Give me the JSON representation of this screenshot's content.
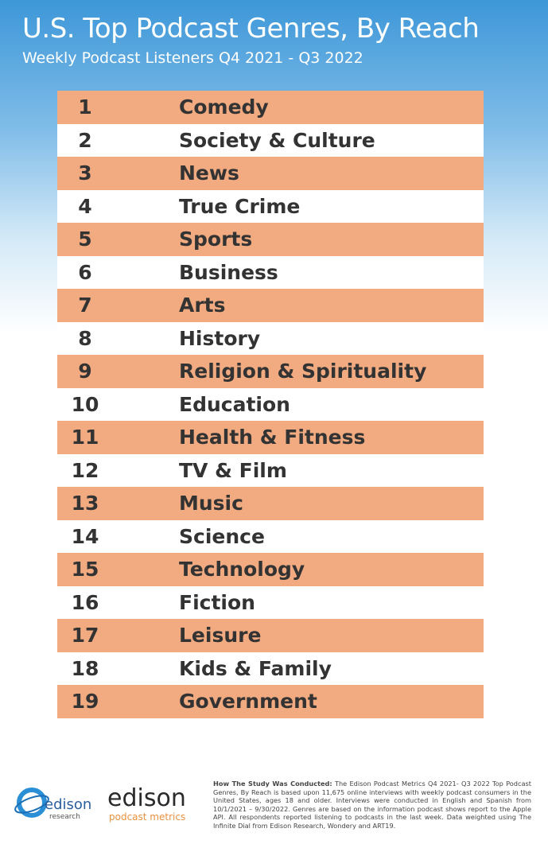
{
  "header": {
    "title": "U.S. Top Podcast Genres, By Reach",
    "subtitle": "Weekly Podcast Listeners Q4 2021 - Q3 2022"
  },
  "table": {
    "rows": [
      [
        1,
        "Comedy"
      ],
      [
        2,
        "Society & Culture"
      ],
      [
        3,
        "News"
      ],
      [
        4,
        "True Crime"
      ],
      [
        5,
        "Sports"
      ],
      [
        6,
        "Business"
      ],
      [
        7,
        "Arts"
      ],
      [
        8,
        "History"
      ],
      [
        9,
        "Religion & Spirituality"
      ],
      [
        10,
        "Education"
      ],
      [
        11,
        "Health & Fitness"
      ],
      [
        12,
        "TV & Film"
      ],
      [
        13,
        "Music"
      ],
      [
        14,
        "Science"
      ],
      [
        15,
        "Technology"
      ],
      [
        16,
        "Fiction"
      ],
      [
        17,
        "Leisure"
      ],
      [
        18,
        "Kids & Family"
      ],
      [
        19,
        "Government"
      ]
    ]
  },
  "footer": {
    "logo_left": {
      "name": "edison",
      "sub": "research"
    },
    "logo_right": {
      "name": "edison",
      "sub": "podcast metrics"
    },
    "methodology_heading": "How The Study Was Conducted:",
    "methodology_text": "The Edison Podcast Metrics Q4 2021- Q3 2022 Top Podcast Genres, By Reach is based upon 11,675 online interviews with weekly podcast consumers in the United States, ages 18 and older. Interviews were conducted in English and Spanish from 10/1/2021 – 9/30/2022. Genres are based on the information podcast shows report to the Apple API. All respondents reported listening to podcasts in the last week. Data weighted using The Infinite Dial from Edison Research, Wondery and ART19."
  }
}
